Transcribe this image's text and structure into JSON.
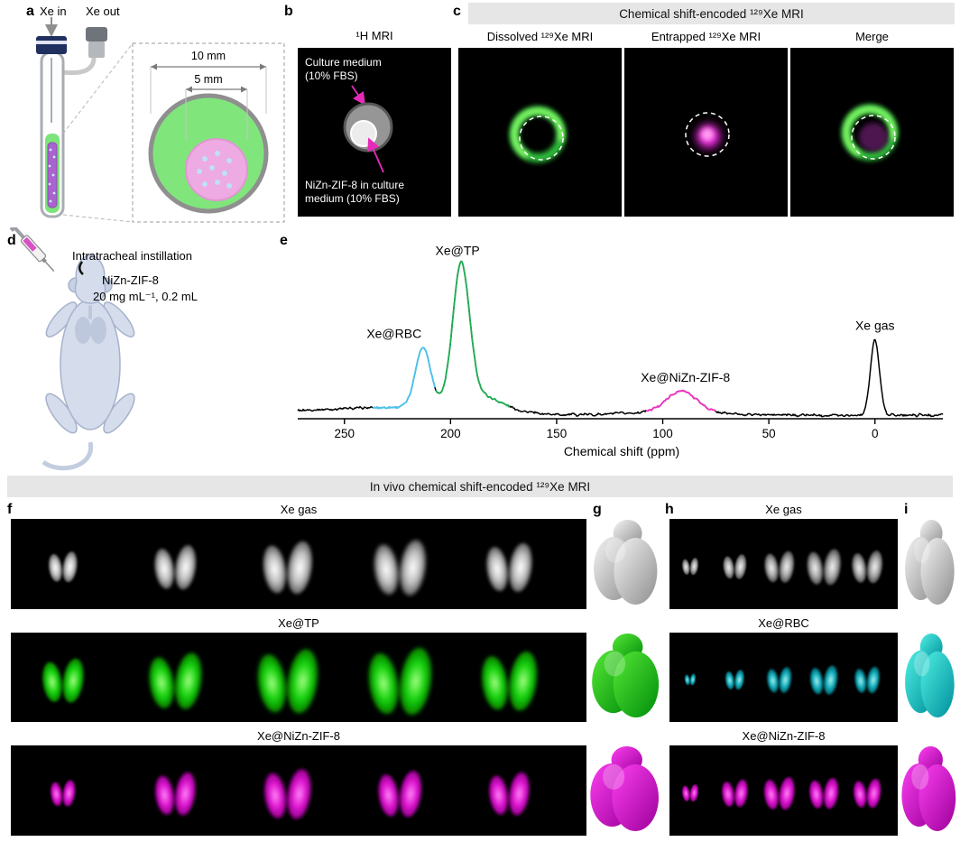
{
  "figure": {
    "panel_labels": {
      "a": "a",
      "b": "b",
      "c": "c",
      "d": "d",
      "e": "e",
      "f": "f",
      "g": "g",
      "h": "h",
      "i": "i"
    }
  },
  "panel_a": {
    "xe_in": "Xe in",
    "xe_out": "Xe out",
    "outer_diameter": "10 mm",
    "inner_diameter": "5 mm"
  },
  "panel_b": {
    "title": "¹H MRI",
    "label_top_line1": "Culture medium",
    "label_top_line2": "(10% FBS)",
    "label_bottom_line1": "NiZn-ZIF-8 in culture",
    "label_bottom_line2": "medium (10% FBS)"
  },
  "panel_c": {
    "header": "Chemical shift-encoded ¹²⁹Xe MRI",
    "col1": "Dissolved ¹²⁹Xe MRI",
    "col2": "Entrapped ¹²⁹Xe MRI",
    "col3": "Merge"
  },
  "panel_d": {
    "procedure": "Intratracheal instillation",
    "agent": "NiZn-ZIF-8",
    "dose": "20 mg mL⁻¹, 0.2 mL"
  },
  "chart_data": {
    "type": "line",
    "title": "",
    "xlabel": "Chemical shift (ppm)",
    "x_ticks": [
      250,
      200,
      150,
      100,
      50,
      0
    ],
    "x_range_ppm": [
      272,
      -32
    ],
    "ylim": [
      0,
      1.2
    ],
    "baseline_noise": 0.013,
    "peaks": [
      {
        "label": "Xe@RBC",
        "center_ppm": 213,
        "amplitude": 0.43,
        "width_ppm": 5,
        "color": "#49c3f0",
        "label_dx": -32,
        "label_dy": 20
      },
      {
        "label": "Xe@TP",
        "center_ppm": 195,
        "amplitude": 0.97,
        "width_ppm": 5.5,
        "color": "#1fae54",
        "label_dx": -4,
        "label_dy": 30
      },
      {
        "label": "Xe@NiZn-ZIF-8",
        "center_ppm": 91,
        "amplitude": 0.15,
        "width_ppm": 10,
        "color": "#ee2fc1",
        "label_dx": 4,
        "label_dy": 14
      },
      {
        "label": "Xe gas",
        "center_ppm": 0,
        "amplitude": 0.55,
        "width_ppm": 3,
        "color": "#000000",
        "label_dx": 0,
        "label_dy": 11
      }
    ],
    "background_humps": [
      {
        "center_ppm": 213,
        "amplitude": 0.05,
        "width_ppm": 40
      },
      {
        "center_ppm": 188,
        "amplitude": 0.12,
        "width_ppm": 16
      },
      {
        "center_ppm": 95,
        "amplitude": 0.025,
        "width_ppm": 28
      },
      {
        "center_ppm": 268,
        "amplitude": 0.03,
        "width_ppm": 45
      }
    ],
    "colored_segments": [
      {
        "ppm_from": 237,
        "ppm_to": 207,
        "color": "#49c3f0"
      },
      {
        "ppm_from": 207,
        "ppm_to": 172,
        "color": "#1fae54"
      },
      {
        "ppm_from": 108,
        "ppm_to": 75,
        "color": "#ee2fc1"
      }
    ]
  },
  "in_vivo": {
    "header": "In vivo chemical shift-encoded ¹²⁹Xe MRI",
    "f_rows": [
      "Xe gas",
      "Xe@TP",
      "Xe@NiZn-ZIF-8"
    ],
    "h_rows": [
      "Xe gas",
      "Xe@RBC",
      "Xe@NiZn-ZIF-8"
    ]
  }
}
